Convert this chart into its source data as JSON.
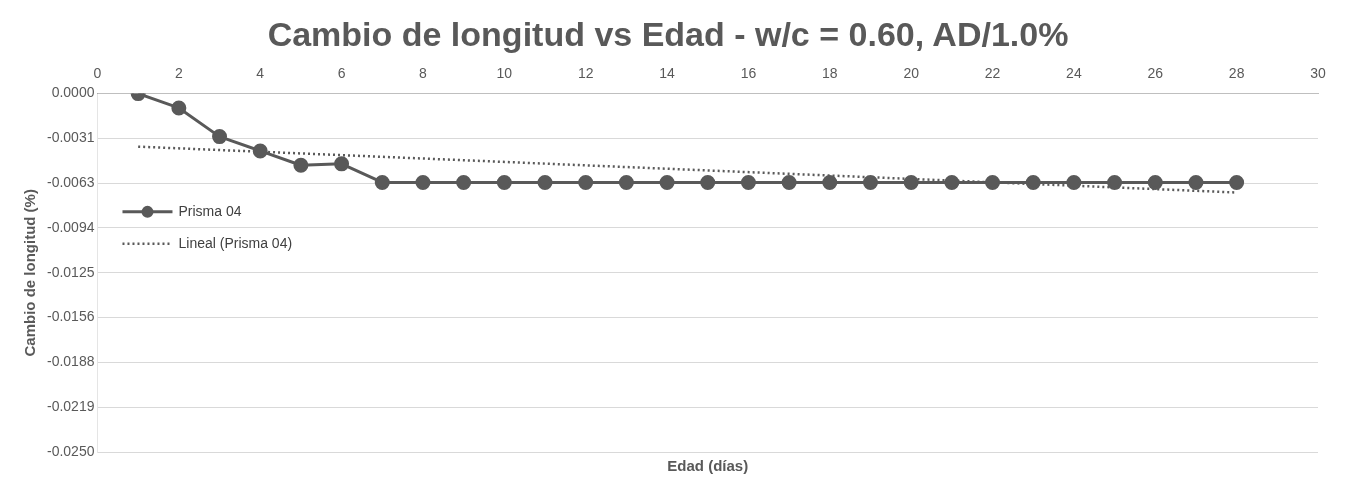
{
  "chart_data": {
    "type": "line",
    "title": "Cambio de longitud vs Edad - w/c = 0.60, AD/1.0%",
    "xlabel": "Edad (días)",
    "ylabel": "Cambio de longitud (%)",
    "xlim": [
      0,
      30
    ],
    "xticks": [
      0,
      2,
      4,
      6,
      8,
      10,
      12,
      14,
      16,
      18,
      20,
      22,
      24,
      26,
      28,
      30
    ],
    "ylim": [
      -0.025,
      0
    ],
    "yticks": [
      {
        "value": 0,
        "label": "0.0000"
      },
      {
        "value": -0.003125,
        "label": "-0.0031"
      },
      {
        "value": -0.00625,
        "label": "-0.0063"
      },
      {
        "value": -0.009375,
        "label": "-0.0094"
      },
      {
        "value": -0.0125,
        "label": "-0.0125"
      },
      {
        "value": -0.015625,
        "label": "-0.0156"
      },
      {
        "value": -0.01875,
        "label": "-0.0188"
      },
      {
        "value": -0.021875,
        "label": "-0.0219"
      },
      {
        "value": -0.025,
        "label": "-0.0250"
      }
    ],
    "grid": "y",
    "legend": "left",
    "series": [
      {
        "name": "Prisma 04",
        "color": "#595959",
        "marker": "circle",
        "line_style": "solid",
        "x": [
          1,
          2,
          3,
          4,
          5,
          6,
          7,
          8,
          9,
          10,
          11,
          12,
          13,
          14,
          15,
          16,
          17,
          18,
          19,
          20,
          21,
          22,
          23,
          24,
          25,
          26,
          27,
          28
        ],
        "values": [
          0,
          -0.001,
          -0.003,
          -0.004,
          -0.005,
          -0.0049,
          -0.0062,
          -0.0062,
          -0.0062,
          -0.0062,
          -0.0062,
          -0.0062,
          -0.0062,
          -0.0062,
          -0.0062,
          -0.0062,
          -0.0062,
          -0.0062,
          -0.0062,
          -0.0062,
          -0.0062,
          -0.0062,
          -0.0062,
          -0.0062,
          -0.0062,
          -0.0062,
          -0.0062,
          -0.0062
        ]
      },
      {
        "name": "Lineal (Prisma 04)",
        "color": "#595959",
        "marker": "none",
        "line_style": "dotted",
        "x": [
          1,
          28
        ],
        "values": [
          -0.0037,
          -0.0069
        ]
      }
    ]
  }
}
